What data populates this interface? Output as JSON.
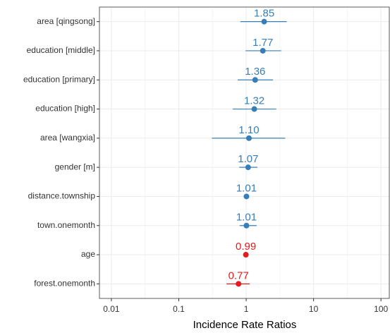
{
  "chart_data": {
    "type": "forest",
    "x_label": "Incidence Rate Ratios",
    "categories": [
      "area [qingsong]",
      "education [middle]",
      "education [primary]",
      "education [high]",
      "area [wangxia]",
      "gender [m]",
      "distance.township",
      "town.onemonth",
      "age",
      "forest.onemonth"
    ],
    "values": [
      1.85,
      1.77,
      1.36,
      1.32,
      1.1,
      1.07,
      1.01,
      1.01,
      0.99,
      0.77
    ],
    "value_labels": [
      "1.85",
      "1.77",
      "1.36",
      "1.32",
      "1.10",
      "1.07",
      "1.01",
      "1.01",
      "0.99",
      "0.77"
    ],
    "lows": [
      0.82,
      0.98,
      0.75,
      0.63,
      0.31,
      0.79,
      0.93,
      0.8,
      0.93,
      0.51
    ],
    "highs": [
      4.0,
      3.3,
      2.5,
      2.8,
      3.8,
      1.47,
      1.07,
      1.43,
      1.05,
      1.13
    ],
    "colors": [
      "#377eb8",
      "#377eb8",
      "#377eb8",
      "#377eb8",
      "#377eb8",
      "#377eb8",
      "#377eb8",
      "#377eb8",
      "#e41a1c",
      "#e41a1c"
    ],
    "log_x": true,
    "xlim": [
      0.00665,
      133
    ],
    "xticks": [
      0.01,
      0.1,
      1,
      10,
      100
    ],
    "grid": true
  }
}
